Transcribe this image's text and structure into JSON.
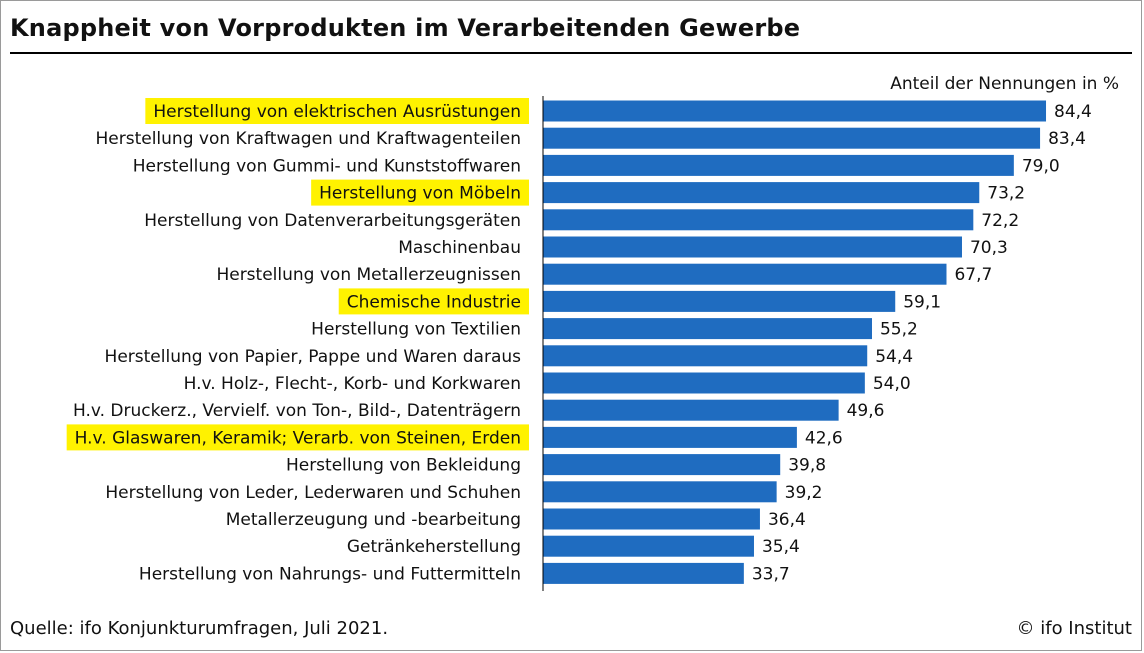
{
  "title": "Knappheit von Vorprodukten im Verarbeitenden Gewerbe",
  "unit_label": "Anteil der Nennungen in %",
  "source": "Quelle: ifo Konjunkturumfragen, Juli 2021.",
  "copyright": "© ifo Institut",
  "colors": {
    "bar": "#1F6CC0",
    "highlight": "#FFF200",
    "axis": "#000000"
  },
  "chart_data": {
    "type": "bar",
    "orientation": "horizontal",
    "categories": [
      "Herstellung von elektrischen Ausrüstungen",
      "Herstellung von Kraftwagen und Kraftwagenteilen",
      "Herstellung von Gummi- und Kunststoffwaren",
      "Herstellung von Möbeln",
      "Herstellung von Datenverarbeitungsgeräten",
      "Maschinenbau",
      "Herstellung von Metallerzeugnissen",
      "Chemische Industrie",
      "Herstellung von Textilien",
      "Herstellung von Papier, Pappe und Waren daraus",
      "H.v. Holz-, Flecht-, Korb- und Korkwaren",
      "H.v. Druckerz., Vervielf. von Ton-, Bild-, Datenträgern",
      "H.v. Glaswaren, Keramik; Verarb. von Steinen, Erden",
      "Herstellung von Bekleidung",
      "Herstellung von Leder, Lederwaren und Schuhen",
      "Metallerzeugung und -bearbeitung",
      "Getränkeherstellung",
      "Herstellung von Nahrungs- und Futtermitteln"
    ],
    "values": [
      84.4,
      83.4,
      79.0,
      73.2,
      72.2,
      70.3,
      67.7,
      59.1,
      55.2,
      54.4,
      54.0,
      49.6,
      42.6,
      39.8,
      39.2,
      36.4,
      35.4,
      33.7
    ],
    "value_labels": [
      "84,4",
      "83,4",
      "79,0",
      "73,2",
      "72,2",
      "70,3",
      "67,7",
      "59,1",
      "55,2",
      "54,4",
      "54,0",
      "49,6",
      "42,6",
      "39,8",
      "39,2",
      "36,4",
      "35,4",
      "33,7"
    ],
    "highlighted": [
      true,
      false,
      false,
      true,
      false,
      false,
      false,
      true,
      false,
      false,
      false,
      false,
      true,
      false,
      false,
      false,
      false,
      false
    ],
    "xlim": [
      0,
      100
    ],
    "grid": false,
    "legend": "none"
  }
}
